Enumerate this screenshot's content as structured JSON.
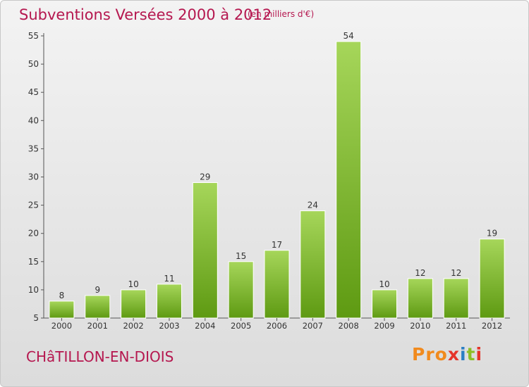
{
  "header": {
    "title": "Subventions Versées 2000 à 2012",
    "unit": "(en milliers d'€)"
  },
  "footer": {
    "town": "CHâTILLON-EN-DIOIS",
    "logo": "Proxiti"
  },
  "colors": {
    "title": "#b5174f",
    "bar_top": "#a6d65a",
    "bar_bottom": "#5e9a12",
    "axis": "#555555"
  },
  "chart_data": {
    "type": "bar",
    "title": "Subventions Versées 2000 à 2012",
    "subtitle": "(en milliers d'€)",
    "xlabel": "",
    "ylabel": "",
    "categories": [
      "2000",
      "2001",
      "2002",
      "2003",
      "2004",
      "2005",
      "2006",
      "2007",
      "2008",
      "2009",
      "2010",
      "2011",
      "2012"
    ],
    "values": [
      8,
      9,
      10,
      11,
      29,
      15,
      17,
      24,
      54,
      10,
      12,
      12,
      19
    ],
    "ylim": [
      5,
      55
    ],
    "yticks": [
      5,
      10,
      15,
      20,
      25,
      30,
      35,
      40,
      45,
      50,
      55
    ],
    "grid": false,
    "legend": "none"
  }
}
